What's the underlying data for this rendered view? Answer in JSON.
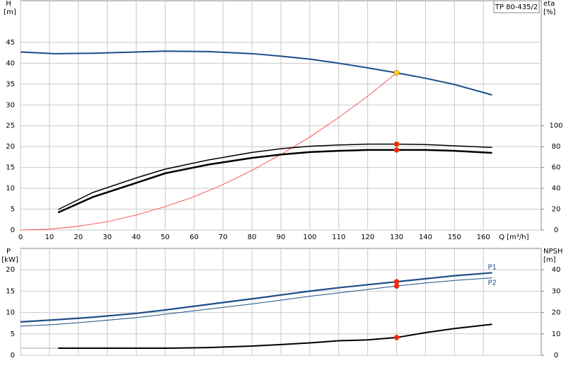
{
  "chart_data": [
    {
      "type": "line",
      "title": "TP 80-435/2",
      "ylabel": "H",
      "yunit": "[m]",
      "y2label": "eta",
      "y2unit": "[%]",
      "xlabel": "Q [m³/h]",
      "xlim": [
        0,
        180
      ],
      "xticks": [
        0,
        10,
        20,
        30,
        40,
        50,
        60,
        70,
        80,
        90,
        100,
        110,
        120,
        130,
        140,
        150,
        160
      ],
      "ylim": [
        0,
        55
      ],
      "yticks": [
        0,
        5,
        10,
        15,
        20,
        25,
        30,
        35,
        40,
        45
      ],
      "y2lim": [
        0,
        220
      ],
      "y2ticks": [
        0,
        20,
        40,
        60,
        80,
        100
      ],
      "grid": true,
      "series": [
        {
          "color": "#1d4e89",
          "width": 2,
          "x": [
            0,
            12,
            25,
            40,
            50,
            65,
            80,
            90,
            100,
            110,
            120,
            130,
            140,
            150,
            163
          ],
          "values": [
            42.7,
            42.3,
            42.4,
            42.7,
            42.9,
            42.8,
            42.3,
            41.7,
            41.0,
            40.0,
            38.9,
            37.7,
            36.4,
            34.9,
            32.4
          ]
        },
        {
          "color": "#ff3333",
          "width": 0.8,
          "x": [
            0,
            10,
            20,
            30,
            40,
            50,
            60,
            70,
            80,
            90,
            100,
            110,
            120,
            130
          ],
          "values": [
            0,
            0.2,
            0.9,
            2.0,
            3.6,
            5.6,
            8.0,
            10.9,
            14.3,
            18.1,
            22.3,
            27.0,
            32.1,
            37.7
          ]
        },
        {
          "color": "#000000",
          "width": 1.5,
          "axis": "y2",
          "x": [
            13,
            25,
            40,
            50,
            65,
            80,
            90,
            100,
            110,
            120,
            130,
            140,
            150,
            163
          ],
          "values": [
            19.6,
            36,
            50,
            58.4,
            67.2,
            74.4,
            78,
            80.4,
            81.6,
            82.4,
            82.4,
            82,
            80.8,
            79.2
          ]
        },
        {
          "color": "#000000",
          "width": 2.5,
          "axis": "y2",
          "x": [
            13,
            25,
            40,
            50,
            65,
            80,
            90,
            100,
            110,
            120,
            130,
            140,
            150,
            163
          ],
          "values": [
            16.8,
            31.6,
            45.2,
            54.4,
            62.8,
            69.2,
            72.4,
            74.8,
            76,
            76.8,
            76.8,
            76.8,
            76,
            74
          ]
        },
        {
          "color": "#ffd700",
          "marker": true,
          "x": [
            130
          ],
          "values": [
            37.7
          ]
        },
        {
          "color": "#ff2020",
          "marker": true,
          "axis": "y2",
          "x": [
            130,
            130
          ],
          "values": [
            82.4,
            76.8
          ]
        }
      ]
    },
    {
      "type": "line",
      "ylabel": "P",
      "yunit": "[kW]",
      "y2label": "NPSH",
      "y2unit": "[m]",
      "xlim": [
        0,
        180
      ],
      "ylim": [
        0,
        25
      ],
      "yticks": [
        0,
        5,
        10,
        15,
        20
      ],
      "y2lim": [
        0,
        50
      ],
      "y2ticks": [
        0,
        10,
        20,
        30,
        40
      ],
      "grid": true,
      "series": [
        {
          "name": "P1",
          "color": "#1d4e89",
          "width": 2.2,
          "x": [
            0,
            12,
            25,
            40,
            50,
            65,
            80,
            90,
            100,
            110,
            120,
            130,
            140,
            150,
            163
          ],
          "values": [
            7.8,
            8.3,
            8.9,
            9.8,
            10.6,
            11.9,
            13.2,
            14.1,
            15.0,
            15.8,
            16.5,
            17.2,
            17.9,
            18.6,
            19.3
          ]
        },
        {
          "name": "P2",
          "color": "#1d4e89",
          "width": 1,
          "x": [
            0,
            12,
            25,
            40,
            50,
            65,
            80,
            90,
            100,
            110,
            120,
            130,
            140,
            150,
            163
          ],
          "values": [
            6.8,
            7.2,
            7.9,
            8.8,
            9.6,
            10.8,
            12.0,
            12.9,
            13.8,
            14.6,
            15.4,
            16.2,
            16.9,
            17.5,
            18.1
          ]
        },
        {
          "color": "#000000",
          "width": 2,
          "axis": "y2",
          "x": [
            13,
            25,
            40,
            50,
            65,
            80,
            90,
            100,
            110,
            120,
            130,
            140,
            150,
            163
          ],
          "values": [
            3.3,
            3.3,
            3.3,
            3.3,
            3.6,
            4.3,
            5.0,
            5.8,
            6.8,
            7.2,
            8.3,
            10.6,
            12.5,
            14.5
          ]
        },
        {
          "color": "#aaaaaa",
          "width": 1,
          "axis": "y2",
          "x": [
            0,
            13
          ],
          "values": [
            3.3,
            3.3
          ]
        },
        {
          "color": "#ff2020",
          "marker": true,
          "x": [
            130,
            130
          ],
          "values": [
            17.2,
            16.2
          ]
        },
        {
          "color": "#ff2020",
          "marker": true,
          "axis": "y2",
          "x": [
            130
          ],
          "values": [
            8.3
          ]
        }
      ]
    }
  ]
}
